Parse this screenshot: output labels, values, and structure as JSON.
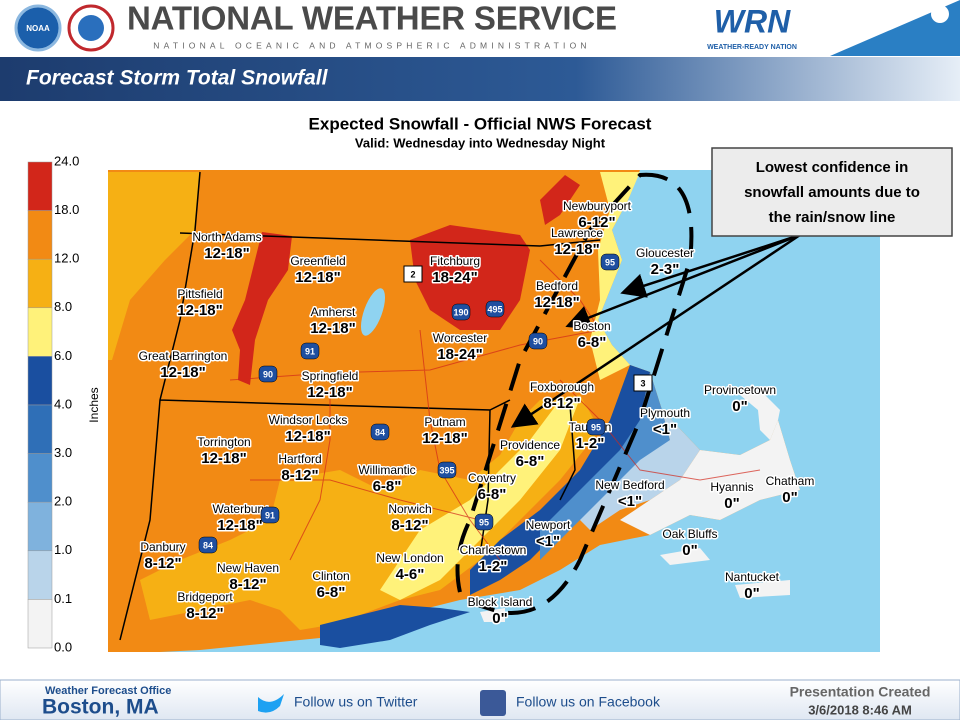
{
  "header": {
    "agency": "NATIONAL WEATHER SERVICE",
    "parent": "NATIONAL OCEANIC AND ATMOSPHERIC ADMINISTRATION",
    "logo": "NOAA",
    "wrn": "WRN",
    "wrn_sub": "WEATHER-READY NATION",
    "banner": "Forecast Storm Total Snowfall"
  },
  "map": {
    "title": "Expected Snowfall - Official NWS Forecast",
    "subtitle": "Valid: Wednesday into Wednesday Night",
    "legend_title": "Inches",
    "legend": [
      "24.0",
      "18.0",
      "12.0",
      "8.0",
      "6.0",
      "4.0",
      "3.0",
      "2.0",
      "1.0",
      "0.1",
      "0.0"
    ],
    "cities": [
      {
        "name": "North Adams",
        "amount": "12-18\""
      },
      {
        "name": "Greenfield",
        "amount": "12-18\""
      },
      {
        "name": "Fitchburg",
        "amount": "18-24\""
      },
      {
        "name": "Lawrence",
        "amount": "12-18\""
      },
      {
        "name": "Newburyport",
        "amount": "6-12\""
      },
      {
        "name": "Gloucester",
        "amount": "2-3\""
      },
      {
        "name": "Pittsfield",
        "amount": "12-18\""
      },
      {
        "name": "Amherst",
        "amount": "12-18\""
      },
      {
        "name": "Bedford",
        "amount": "12-18\""
      },
      {
        "name": "Boston",
        "amount": "6-8\""
      },
      {
        "name": "Worcester",
        "amount": "18-24\""
      },
      {
        "name": "Great Barrington",
        "amount": "12-18\""
      },
      {
        "name": "Springfield",
        "amount": "12-18\""
      },
      {
        "name": "Foxborough",
        "amount": "8-12\""
      },
      {
        "name": "Provincetown",
        "amount": "0\""
      },
      {
        "name": "Plymouth",
        "amount": "<1\""
      },
      {
        "name": "Windsor Locks",
        "amount": "12-18\""
      },
      {
        "name": "Putnam",
        "amount": "12-18\""
      },
      {
        "name": "Taunton",
        "amount": "1-2\""
      },
      {
        "name": "Torrington",
        "amount": "12-18\""
      },
      {
        "name": "Providence",
        "amount": "6-8\""
      },
      {
        "name": "Hartford",
        "amount": "8-12\""
      },
      {
        "name": "Willimantic",
        "amount": "6-8\""
      },
      {
        "name": "Hyannis",
        "amount": "0\""
      },
      {
        "name": "Chatham",
        "amount": "0\""
      },
      {
        "name": "New Bedford",
        "amount": "<1\""
      },
      {
        "name": "Coventry",
        "amount": "6-8\""
      },
      {
        "name": "Norwich",
        "amount": "8-12\""
      },
      {
        "name": "Waterbury",
        "amount": "12-18\""
      },
      {
        "name": "Newport",
        "amount": "<1\""
      },
      {
        "name": "Oak Bluffs",
        "amount": "0\""
      },
      {
        "name": "Danbury",
        "amount": "8-12\""
      },
      {
        "name": "New London",
        "amount": "4-6\""
      },
      {
        "name": "Charlestown",
        "amount": "1-2\""
      },
      {
        "name": "New Haven",
        "amount": "8-12\""
      },
      {
        "name": "Nantucket",
        "amount": "0\""
      },
      {
        "name": "Clinton",
        "amount": "6-8\""
      },
      {
        "name": "Bridgeport",
        "amount": "8-12\""
      },
      {
        "name": "Block Island",
        "amount": "0\""
      }
    ],
    "routes": [
      "2",
      "3",
      "95",
      "90",
      "91",
      "84",
      "190",
      "495",
      "395",
      "90",
      "91",
      "84",
      "95",
      "95"
    ],
    "callout": [
      "Lowest confidence in",
      "snowfall amounts due to",
      "the rain/snow line"
    ]
  },
  "footer": {
    "office_label": "Weather Forecast Office",
    "office": "Boston, MA",
    "twitter": "Follow us on Twitter",
    "facebook": "Follow us on Facebook",
    "created_label": "Presentation Created",
    "created": "3/6/2018 8:46 AM"
  }
}
